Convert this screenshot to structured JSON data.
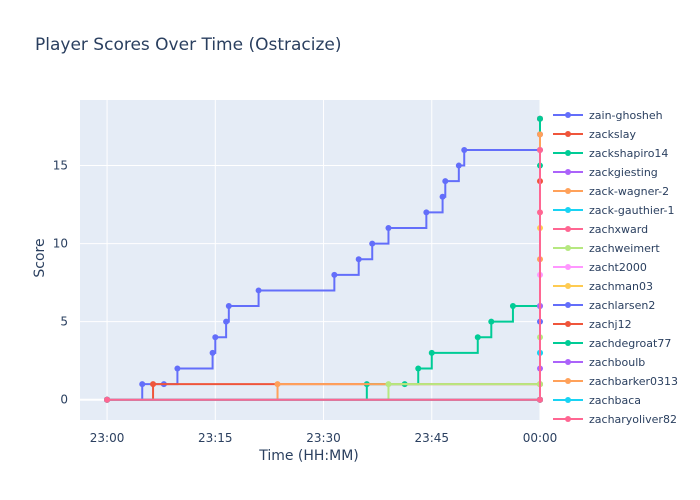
{
  "chart_data": {
    "type": "line",
    "title": "Player Scores Over Time (Ostracize)",
    "xlabel": "Time (HH:MM)",
    "ylabel": "Score",
    "x_ticks": [
      "23:00",
      "23:15",
      "23:30",
      "23:45",
      "00:00"
    ],
    "y_ticks": [
      0,
      5,
      10,
      15
    ],
    "xlim_minutes": [
      -5,
      65
    ],
    "ylim": [
      -1.3,
      19.2
    ],
    "grid": true,
    "legend_position": "right",
    "line_shape": "step",
    "series": [
      {
        "name": "zain-ghosheh",
        "color": "#636efa",
        "points": [
          [
            0,
            0
          ],
          [
            6.5,
            1
          ],
          [
            10.5,
            1
          ],
          [
            13,
            2
          ],
          [
            19.5,
            3
          ],
          [
            20,
            4
          ],
          [
            22,
            5
          ],
          [
            22.5,
            6
          ],
          [
            28,
            7
          ],
          [
            42,
            8
          ],
          [
            46.5,
            9
          ],
          [
            49,
            10
          ],
          [
            52,
            11
          ],
          [
            59,
            12
          ],
          [
            62,
            13
          ],
          [
            62.5,
            14
          ],
          [
            65,
            15
          ],
          [
            66,
            16
          ],
          [
            80,
            16
          ],
          [
            80,
            17
          ],
          [
            80,
            18
          ]
        ]
      },
      {
        "name": "zackslay",
        "color": "#ef553b",
        "points": [
          [
            0,
            0
          ],
          [
            8.5,
            1
          ],
          [
            80,
            1
          ],
          [
            80,
            18
          ]
        ]
      },
      {
        "name": "zackshapiro14",
        "color": "#00cc96",
        "points": [
          [
            0,
            0
          ],
          [
            48,
            1
          ],
          [
            55,
            1
          ],
          [
            57.5,
            2
          ],
          [
            60,
            3
          ],
          [
            68.5,
            4
          ],
          [
            71,
            5
          ],
          [
            75,
            6
          ],
          [
            80,
            6
          ],
          [
            80,
            18
          ]
        ]
      },
      {
        "name": "zackgiesting",
        "color": "#ab63fa",
        "points": [
          [
            0,
            0
          ],
          [
            80,
            0
          ],
          [
            80,
            2
          ]
        ]
      },
      {
        "name": "zack-wagner-2",
        "color": "#ffa15a",
        "points": [
          [
            0,
            0
          ],
          [
            31.5,
            1
          ],
          [
            80,
            1
          ],
          [
            80,
            17
          ]
        ]
      },
      {
        "name": "zack-gauthier-1",
        "color": "#19d3f3",
        "points": [
          [
            0,
            0
          ],
          [
            80,
            0
          ],
          [
            80,
            3
          ]
        ]
      },
      {
        "name": "zachxward",
        "color": "#ff6692",
        "points": [
          [
            0,
            0
          ],
          [
            80,
            0
          ],
          [
            80,
            12
          ]
        ]
      },
      {
        "name": "zachweimert",
        "color": "#b6e880",
        "points": [
          [
            0,
            0
          ],
          [
            52,
            1
          ],
          [
            80,
            1
          ],
          [
            80,
            4
          ]
        ]
      },
      {
        "name": "zacht2000",
        "color": "#ff97ff",
        "points": [
          [
            0,
            0
          ],
          [
            80,
            0
          ],
          [
            80,
            8
          ]
        ]
      },
      {
        "name": "zachman03",
        "color": "#fecb52",
        "points": [
          [
            0,
            0
          ],
          [
            80,
            0
          ],
          [
            80,
            11
          ]
        ]
      },
      {
        "name": "zachlarsen2",
        "color": "#636efa",
        "points": [
          [
            0,
            0
          ],
          [
            80,
            0
          ],
          [
            80,
            5
          ]
        ]
      },
      {
        "name": "zachj12",
        "color": "#ef553b",
        "points": [
          [
            0,
            0
          ],
          [
            80,
            0
          ],
          [
            80,
            14
          ]
        ]
      },
      {
        "name": "zachdegroat77",
        "color": "#00cc96",
        "points": [
          [
            0,
            0
          ],
          [
            80,
            0
          ],
          [
            80,
            15
          ]
        ]
      },
      {
        "name": "zachboulb",
        "color": "#ab63fa",
        "points": [
          [
            0,
            0
          ],
          [
            80,
            0
          ],
          [
            80,
            6
          ]
        ]
      },
      {
        "name": "zachbarker0313",
        "color": "#ffa15a",
        "points": [
          [
            0,
            0
          ],
          [
            80,
            0
          ],
          [
            80,
            9
          ]
        ]
      },
      {
        "name": "zachbaca",
        "color": "#19d3f3",
        "points": [
          [
            0,
            0
          ],
          [
            80,
            0
          ],
          [
            80,
            3
          ]
        ]
      },
      {
        "name": "zacharyoliver82",
        "color": "#ff6692",
        "points": [
          [
            0,
            0
          ],
          [
            80,
            0
          ],
          [
            80,
            16
          ]
        ]
      }
    ]
  }
}
